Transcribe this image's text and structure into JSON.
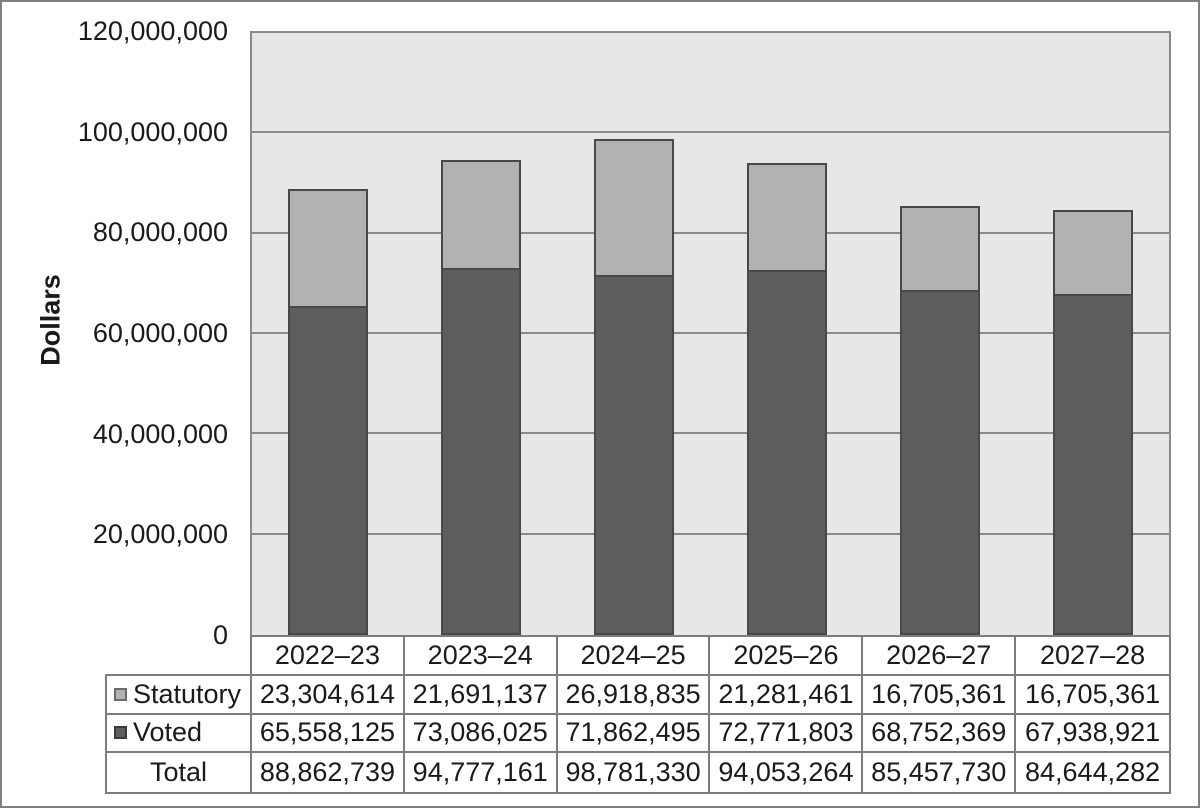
{
  "colors": {
    "statutory_fill": "#b2b2b2",
    "voted_fill": "#5e5e5e",
    "bar_border": "#484848",
    "plot_background": "#e7e7e7",
    "grid_line": "#8a8a8a",
    "table_border": "#7d7d7d",
    "outer_border": "#7f7f7f",
    "text": "#1a1a1a"
  },
  "chart_data": {
    "type": "bar",
    "stacked": true,
    "title": "",
    "xlabel": "",
    "ylabel": "Dollars",
    "grid": true,
    "legend_position": "table-left",
    "ylim": [
      0,
      120000000
    ],
    "ytick_step": 20000000,
    "ytick_labels": [
      "0",
      "20,000,000",
      "40,000,000",
      "60,000,000",
      "80,000,000",
      "100,000,000",
      "120,000,000"
    ],
    "categories": [
      "2022–23",
      "2023–24",
      "2024–25",
      "2025–26",
      "2026–27",
      "2027–28"
    ],
    "series": [
      {
        "name": "Statutory",
        "marker": "statutory",
        "values": [
          23304614,
          21691137,
          26918835,
          21281461,
          16705361,
          16705361
        ],
        "formatted": [
          "23,304,614",
          "21,691,137",
          "26,918,835",
          "21,281,461",
          "16,705,361",
          "16,705,361"
        ]
      },
      {
        "name": "Voted",
        "marker": "voted",
        "values": [
          65558125,
          73086025,
          71862495,
          72771803,
          68752369,
          67938921
        ],
        "formatted": [
          "65,558,125",
          "73,086,025",
          "71,862,495",
          "72,771,803",
          "68,752,369",
          "67,938,921"
        ]
      }
    ],
    "totals": {
      "name": "Total",
      "values": [
        88862739,
        94777161,
        98781330,
        94053264,
        85457730,
        84644282
      ],
      "formatted": [
        "88,862,739",
        "94,777,161",
        "98,781,330",
        "94,053,264",
        "85,457,730",
        "84,644,282"
      ]
    }
  }
}
